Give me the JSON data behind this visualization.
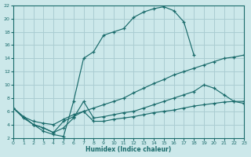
{
  "xlabel": "Humidex (Indice chaleur)",
  "bg_color": "#cce8ea",
  "grid_color": "#aacdd2",
  "line_color": "#1a6b6b",
  "xlim": [
    0,
    23
  ],
  "ylim": [
    2,
    22
  ],
  "xticks": [
    0,
    1,
    2,
    3,
    4,
    5,
    6,
    7,
    8,
    9,
    10,
    11,
    12,
    13,
    14,
    15,
    16,
    17,
    18,
    19,
    20,
    21,
    22,
    23
  ],
  "yticks": [
    2,
    4,
    6,
    8,
    10,
    12,
    14,
    16,
    18,
    20,
    22
  ],
  "curve1_x": [
    0,
    1,
    2,
    3,
    4,
    5,
    6,
    7,
    8,
    9,
    10,
    11,
    12,
    13,
    14,
    15,
    16,
    17,
    18
  ],
  "curve1_y": [
    6.5,
    5.0,
    4.0,
    3.0,
    2.5,
    2.2,
    7.5,
    14.0,
    15.0,
    17.5,
    18.0,
    18.5,
    20.2,
    21.0,
    21.5,
    21.8,
    21.2,
    19.5,
    14.5
  ],
  "curve2_x": [
    0,
    1,
    2,
    3,
    4,
    5,
    6,
    7,
    8,
    9,
    10,
    11,
    12,
    13,
    14,
    15,
    16,
    17,
    18,
    19,
    20,
    21,
    22,
    23
  ],
  "curve2_y": [
    6.5,
    5.2,
    4.5,
    4.2,
    4.0,
    4.8,
    5.5,
    6.0,
    6.5,
    7.0,
    7.5,
    8.0,
    8.8,
    9.5,
    10.2,
    10.8,
    11.5,
    12.0,
    12.5,
    13.0,
    13.5,
    14.0,
    14.2,
    14.5
  ],
  "curve3_x": [
    0,
    1,
    2,
    3,
    4,
    5,
    6,
    7,
    8,
    9,
    10,
    11,
    12,
    13,
    14,
    15,
    16,
    17,
    18,
    19,
    20,
    21,
    22,
    23
  ],
  "curve3_y": [
    6.5,
    5.2,
    4.0,
    3.5,
    2.8,
    4.5,
    5.2,
    6.0,
    4.5,
    4.5,
    4.8,
    5.0,
    5.2,
    5.5,
    5.8,
    6.0,
    6.2,
    6.5,
    6.8,
    7.0,
    7.2,
    7.4,
    7.5,
    7.5
  ],
  "curve4_x": [
    2,
    3,
    4,
    5,
    6,
    7,
    8,
    9,
    10,
    11,
    12,
    13,
    14,
    15,
    16,
    17,
    18,
    19,
    20,
    21,
    22,
    23
  ],
  "curve4_y": [
    4.0,
    3.5,
    2.8,
    3.5,
    5.0,
    7.5,
    5.0,
    5.2,
    5.5,
    5.8,
    6.0,
    6.5,
    7.0,
    7.5,
    8.0,
    8.5,
    9.0,
    10.0,
    9.5,
    8.5,
    7.5,
    7.2
  ]
}
